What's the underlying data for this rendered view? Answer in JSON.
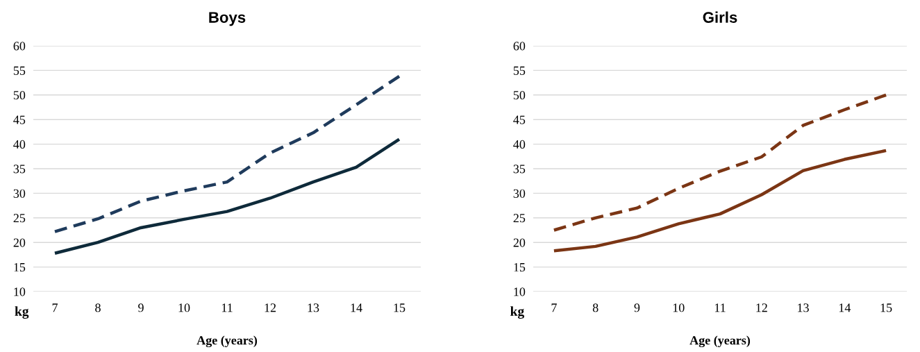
{
  "chart_data": [
    {
      "type": "line",
      "title": "Boys",
      "xlabel": "Age (years)",
      "ylabel": "kg",
      "categories": [
        "7",
        "8",
        "9",
        "10",
        "11",
        "12",
        "13",
        "14",
        "15"
      ],
      "ylim": [
        10,
        60
      ],
      "yticks": [
        10,
        15,
        20,
        25,
        30,
        35,
        40,
        45,
        50,
        55,
        60
      ],
      "grid": "y",
      "series": [
        {
          "color": "#0e2a3a",
          "line_style": "solid",
          "values": [
            17.8,
            20,
            23,
            24.7,
            26.3,
            29,
            32.3,
            35.3,
            41
          ]
        },
        {
          "color": "#1f3b5c",
          "line_style": "dashed",
          "values": [
            22.2,
            24.8,
            28.4,
            30.5,
            32.3,
            38.2,
            42.3,
            48,
            53.8
          ]
        }
      ]
    },
    {
      "type": "line",
      "title": "Girls",
      "xlabel": "Age (years)",
      "ylabel": "kg",
      "categories": [
        "7",
        "8",
        "9",
        "10",
        "11",
        "12",
        "13",
        "14",
        "15"
      ],
      "ylim": [
        10,
        60
      ],
      "yticks": [
        10,
        15,
        20,
        25,
        30,
        35,
        40,
        45,
        50,
        55,
        60
      ],
      "grid": "y",
      "series": [
        {
          "color": "#7b3514",
          "line_style": "solid",
          "values": [
            18.3,
            19.2,
            21.1,
            23.8,
            25.8,
            29.7,
            34.6,
            36.9,
            38.7
          ]
        },
        {
          "color": "#7b3514",
          "line_style": "dashed",
          "values": [
            22.5,
            25,
            27,
            31,
            34.5,
            37.4,
            43.8,
            47,
            50
          ]
        }
      ]
    }
  ]
}
